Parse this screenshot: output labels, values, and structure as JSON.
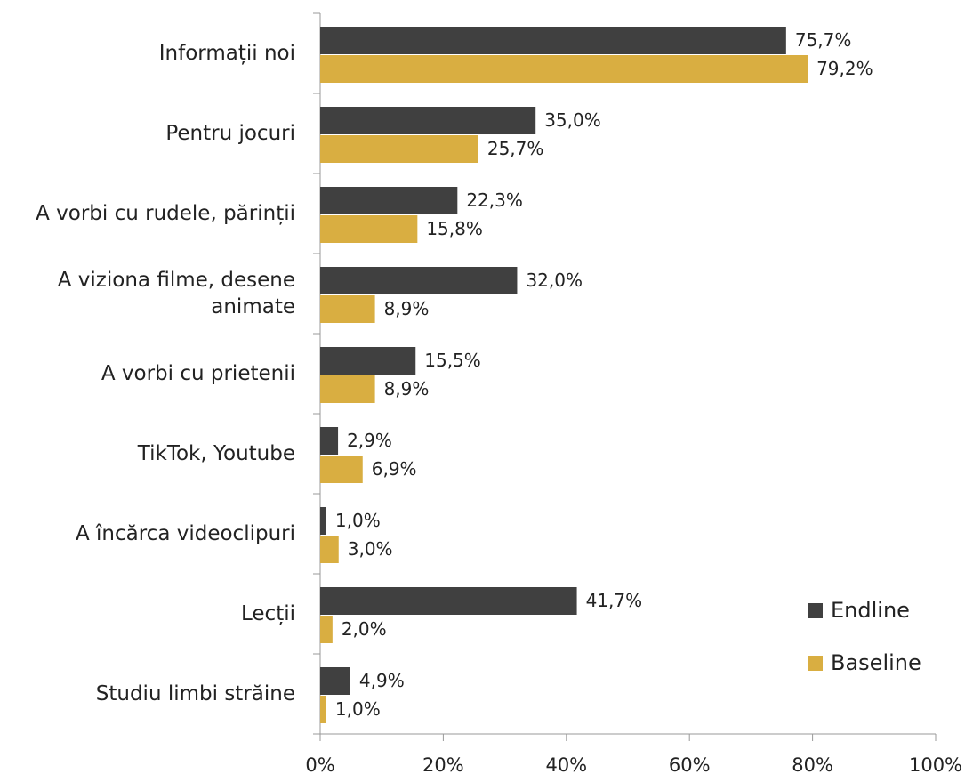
{
  "chart_data": {
    "type": "barh",
    "categories": [
      "Informații noi",
      "Pentru jocuri",
      "A vorbi cu rudele, părinții",
      "A viziona filme, desene animate",
      "A vorbi cu prietenii",
      "TikTok, Youtube",
      "A încărca videoclipuri",
      "Lecții",
      "Studiu limbi străine"
    ],
    "series": [
      {
        "name": "Endline",
        "color": "#404040",
        "values": [
          75.7,
          35.0,
          22.3,
          32.0,
          15.5,
          2.9,
          1.0,
          41.7,
          4.9
        ],
        "value_labels": [
          "75,7%",
          "35,0%",
          "22,3%",
          "32,0%",
          "15,5%",
          "2,9%",
          "1,0%",
          "41,7%",
          "4,9%"
        ]
      },
      {
        "name": "Baseline",
        "color": "#d9ae41",
        "values": [
          79.2,
          25.7,
          15.8,
          8.9,
          8.9,
          6.9,
          3.0,
          2.0,
          1.0
        ],
        "value_labels": [
          "79,2%",
          "25,7%",
          "15,8%",
          "8,9%",
          "8,9%",
          "6,9%",
          "3,0%",
          "2,0%",
          "1,0%"
        ]
      }
    ],
    "xlim": [
      0,
      100
    ],
    "xticks": [
      {
        "value": 0,
        "label": "0%"
      },
      {
        "value": 20,
        "label": "20%"
      },
      {
        "value": 40,
        "label": "40%"
      },
      {
        "value": 60,
        "label": "60%"
      },
      {
        "value": 80,
        "label": "80%"
      },
      {
        "value": 100,
        "label": "100%"
      }
    ],
    "legend": "lower right"
  }
}
